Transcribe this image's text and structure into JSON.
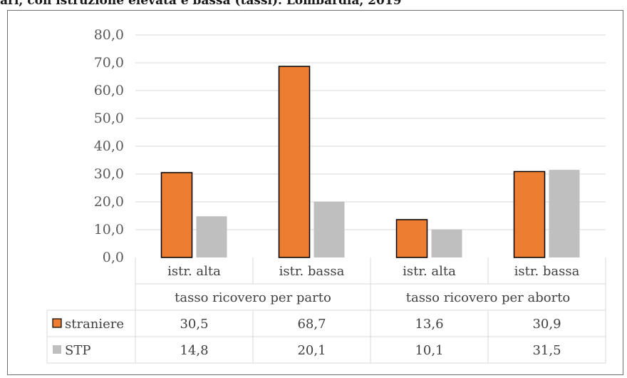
{
  "header": {
    "title_fragment": "ari, con istruzione elevata e bassa (tassi). Lombardia, 2019"
  },
  "chart_data": {
    "type": "bar",
    "ylim": [
      0,
      80
    ],
    "yticks": [
      "0,0",
      "10,0",
      "20,0",
      "30,0",
      "40,0",
      "50,0",
      "60,0",
      "70,0",
      "80,0"
    ],
    "groups": [
      "tasso ricovero per parto",
      "tasso ricovero per aborto"
    ],
    "categories": [
      "istr. alta",
      "istr. bassa",
      "istr. alta",
      "istr. bassa"
    ],
    "series": [
      {
        "name": "straniere",
        "color": "#ed7d31",
        "values": [
          30.5,
          68.7,
          13.6,
          30.9
        ],
        "labels": [
          "30,5",
          "68,7",
          "13,6",
          "30,9"
        ]
      },
      {
        "name": "STP",
        "color": "#bfbfbf",
        "values": [
          14.8,
          20.1,
          10.1,
          31.5
        ],
        "labels": [
          "14,8",
          "20,1",
          "10,1",
          "31,5"
        ]
      }
    ],
    "grid": true,
    "legend": "data-table"
  }
}
